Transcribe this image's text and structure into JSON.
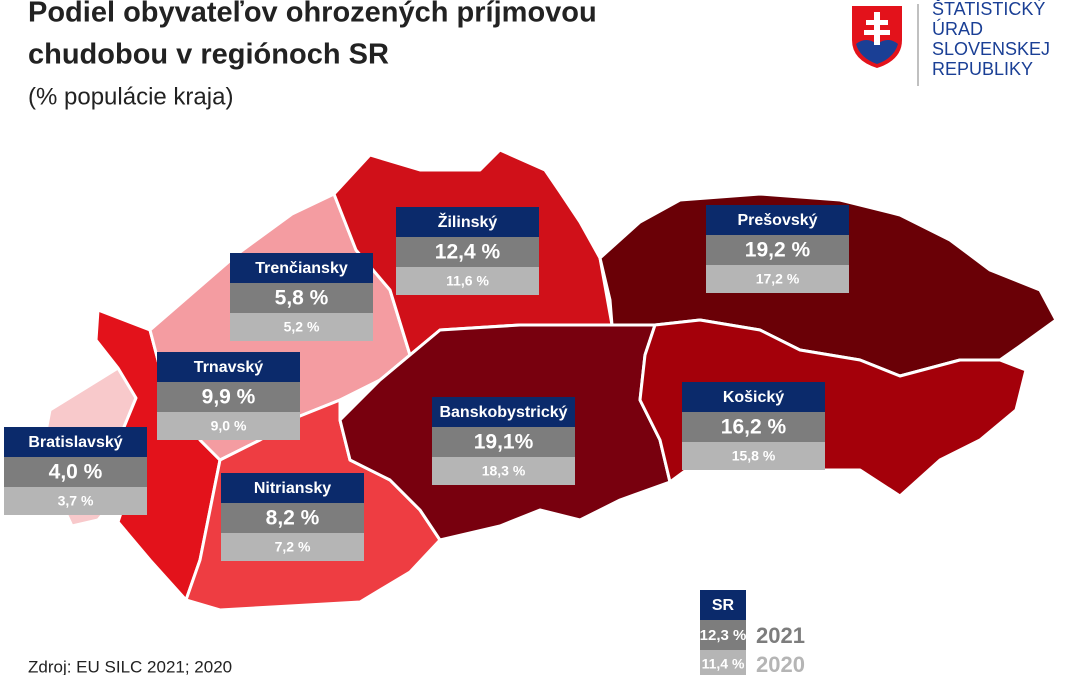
{
  "header": {
    "title_line1": "Podiel obyvateľov ohrozených príjmovou",
    "title_line2": "chudobou v regiónoch SR",
    "subtitle": "(% populácie kraja)"
  },
  "logo": {
    "lines": [
      "ŠTATISTICKÝ",
      "ÚRAD",
      "SLOVENSKEJ",
      "REPUBLIKY"
    ]
  },
  "regions": [
    {
      "name": "Bratislavský",
      "value_2021": "4,0 %",
      "value_2020": "3,7 %",
      "color": "#f8c9cb"
    },
    {
      "name": "Trnavský",
      "value_2021": "9,9 %",
      "value_2020": "9,0 %",
      "color": "#e3121b"
    },
    {
      "name": "Trenčiansky",
      "value_2021": "5,8 %",
      "value_2020": "5,2 %",
      "color": "#f49ca1"
    },
    {
      "name": "Nitriansky",
      "value_2021": "8,2 %",
      "value_2020": "7,2 %",
      "color": "#ee3d42"
    },
    {
      "name": "Žilinský",
      "value_2021": "12,4 %",
      "value_2020": "11,6 %",
      "color": "#d01019"
    },
    {
      "name": "Banskobystrický",
      "value_2021": "19,1%",
      "value_2020": "18,3 %",
      "color": "#78000e"
    },
    {
      "name": "Prešovský",
      "value_2021": "19,2 %",
      "value_2020": "17,2 %",
      "color": "#6a0006"
    },
    {
      "name": "Košický",
      "value_2021": "16,2 %",
      "value_2020": "15,8 %",
      "color": "#a4000a"
    }
  ],
  "total": {
    "name": "SR",
    "value_2021": "12,3 %",
    "value_2020": "11,4 %",
    "year_2021": "2021",
    "year_2020": "2020"
  },
  "source": "Zdroj: EU SILC 2021; 2020"
}
